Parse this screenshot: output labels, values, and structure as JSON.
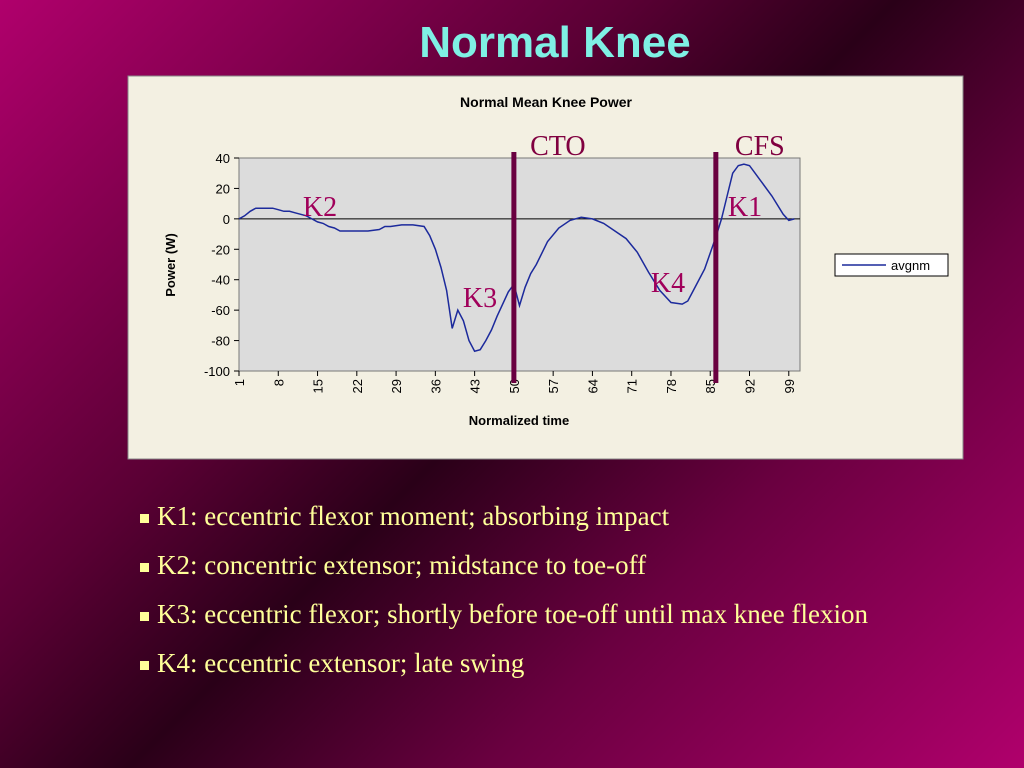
{
  "slide_title": "Normal Knee",
  "chart_data": {
    "type": "line",
    "title": "Normal Mean Knee Power",
    "xlabel": "Normalized time",
    "ylabel": "Power (W)",
    "x": [
      1,
      2,
      3,
      4,
      5,
      6,
      7,
      8,
      9,
      10,
      11,
      12,
      13,
      14,
      15,
      16,
      17,
      18,
      19,
      20,
      22,
      24,
      26,
      27,
      28,
      30,
      32,
      34,
      35,
      36,
      37,
      38,
      39,
      40,
      41,
      42,
      43,
      44,
      45,
      46,
      47,
      48,
      49,
      50,
      51,
      52,
      53,
      54,
      56,
      58,
      60,
      62,
      64,
      66,
      68,
      70,
      72,
      74,
      76,
      78,
      80,
      81,
      82,
      84,
      86,
      87,
      88,
      89,
      90,
      91,
      92,
      93,
      94,
      96,
      98,
      99,
      100
    ],
    "series": [
      {
        "name": "avgnm",
        "color": "#1c2a9c",
        "values": [
          0,
          2,
          5,
          7,
          7,
          7,
          7,
          6,
          5,
          5,
          4,
          3,
          2,
          0,
          -2,
          -3,
          -5,
          -6,
          -8,
          -8,
          -8,
          -8,
          -7,
          -5,
          -5,
          -4,
          -4,
          -5,
          -11,
          -20,
          -32,
          -47,
          -72,
          -60,
          -67,
          -80,
          -87,
          -86,
          -80,
          -73,
          -64,
          -56,
          -48,
          -43,
          -57,
          -45,
          -36,
          -30,
          -15,
          -6,
          -1,
          1,
          0,
          -3,
          -8,
          -13,
          -22,
          -35,
          -47,
          -55,
          -56,
          -54,
          -47,
          -33,
          -12,
          0,
          15,
          30,
          35,
          36,
          35,
          30,
          25,
          15,
          3,
          -1,
          0
        ]
      }
    ],
    "xlim": [
      1,
      101
    ],
    "xticks": [
      1,
      8,
      15,
      22,
      29,
      36,
      43,
      50,
      57,
      64,
      71,
      78,
      85,
      92,
      99
    ],
    "ylim": [
      -100,
      40
    ],
    "yticks": [
      -100,
      -80,
      -60,
      -40,
      -20,
      0,
      20,
      40
    ],
    "legend": "right",
    "vlines": [
      {
        "label": "CTO",
        "x": 50
      },
      {
        "label": "CFS",
        "x": 86
      }
    ],
    "annotations": [
      "K2",
      "K3",
      "K4",
      "K1"
    ]
  },
  "bullets": [
    "K1: eccentric flexor moment; absorbing impact",
    "K2: concentric extensor; midstance to toe-off",
    "K3: eccentric flexor; shortly before toe-off until max knee flexion",
    "K4: eccentric extensor; late swing"
  ]
}
